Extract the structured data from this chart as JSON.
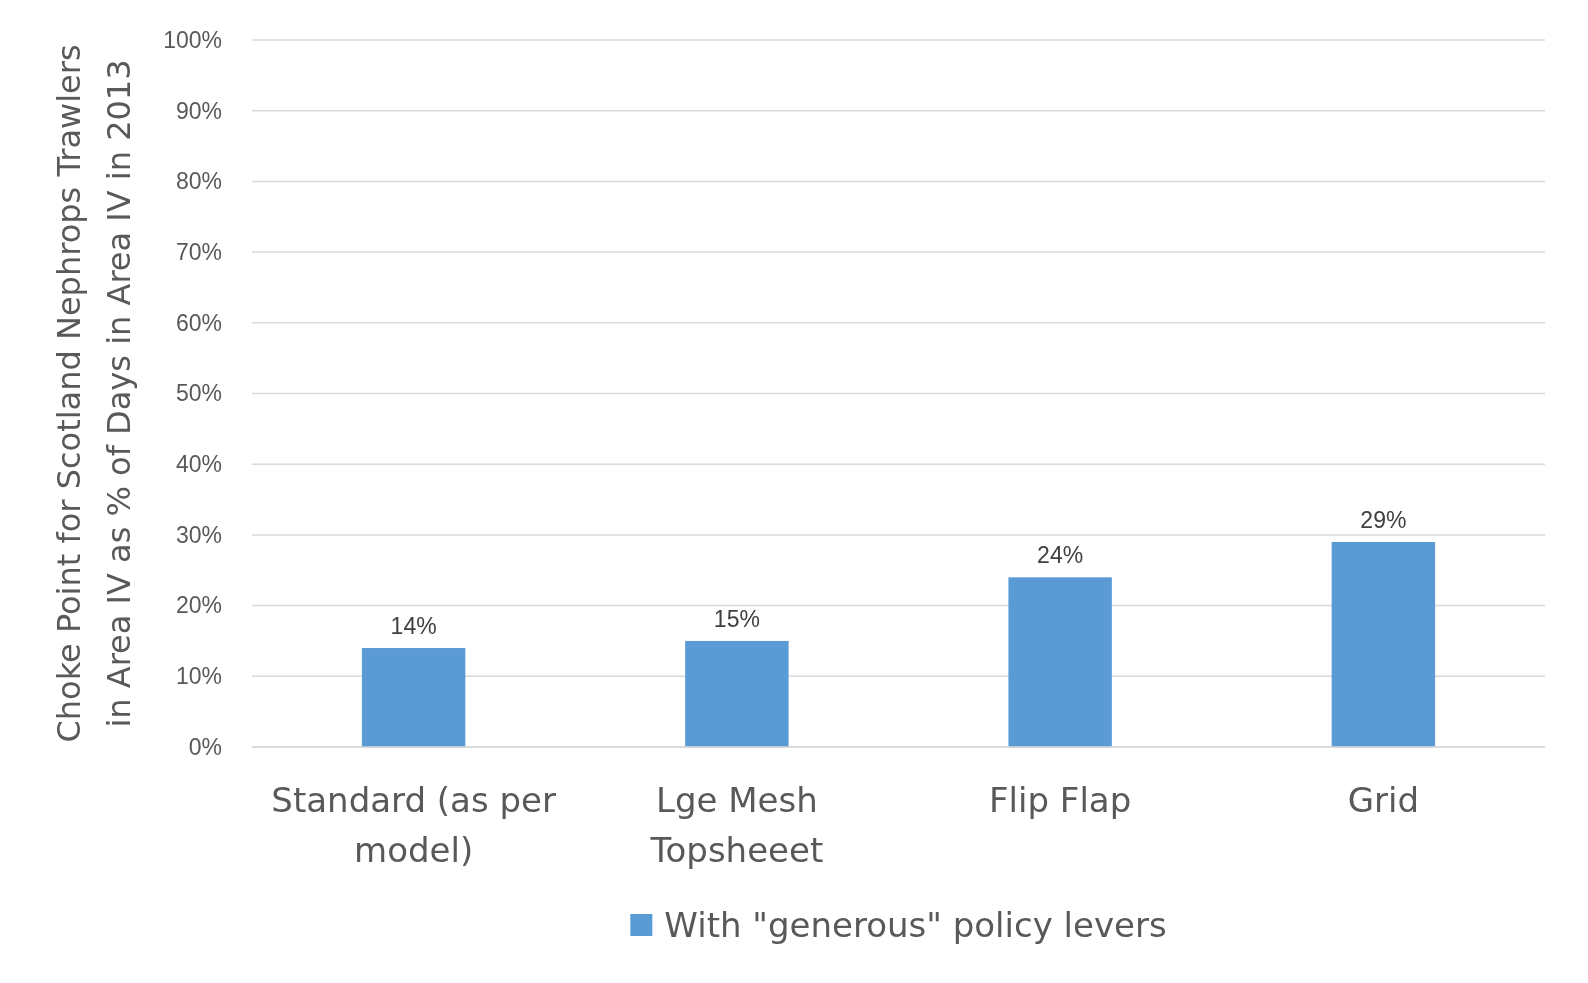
{
  "chart_data": {
    "type": "bar",
    "ylabel": "Choke Point for Scotland Nephrops Trawlers\nin Area IV as % of Days in Area IV in 2013",
    "categories": [
      "Standard (as per model)",
      "Lge Mesh Topsheeet",
      "Flip Flap",
      "Grid"
    ],
    "series": [
      {
        "name": "With \"generous\" policy levers",
        "color": "#5b9bd5",
        "values": [
          14,
          15,
          24,
          29
        ],
        "value_labels": [
          "14%",
          "15%",
          "24%",
          "29%"
        ]
      }
    ],
    "ylim": [
      0,
      100
    ],
    "yticks": [
      {
        "value": 0,
        "label": "0%"
      },
      {
        "value": 10,
        "label": "10%"
      },
      {
        "value": 20,
        "label": "20%"
      },
      {
        "value": 30,
        "label": "30%"
      },
      {
        "value": 40,
        "label": "40%"
      },
      {
        "value": 50,
        "label": "50%"
      },
      {
        "value": 60,
        "label": "60%"
      },
      {
        "value": 70,
        "label": "70%"
      },
      {
        "value": 80,
        "label": "80%"
      },
      {
        "value": 90,
        "label": "90%"
      },
      {
        "value": 100,
        "label": "100%"
      }
    ],
    "grid": "y",
    "legend": "bottom"
  }
}
